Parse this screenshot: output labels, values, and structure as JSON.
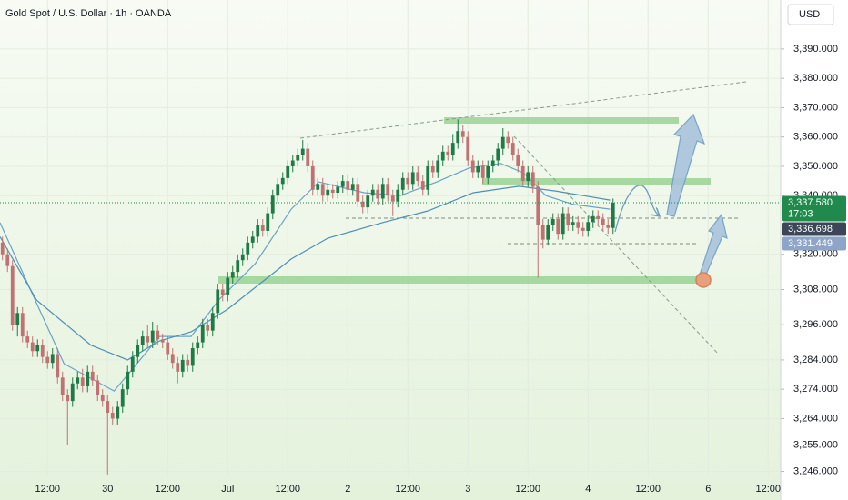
{
  "chart_data": {
    "type": "candlestick",
    "title": "Gold Spot / U.S. Dollar · 1h · OANDA",
    "currency": "USD",
    "up_color": "#1e7b45",
    "down_color": "#c07272",
    "xlim": [
      -21.5,
      134.5
    ],
    "ylim": [
      3244,
      3406.7
    ],
    "xticks": [
      {
        "value": -12,
        "label": "12:00"
      },
      {
        "value": 0,
        "label": "30"
      },
      {
        "value": 12,
        "label": "12:00"
      },
      {
        "value": 24,
        "label": "Jul"
      },
      {
        "value": 36,
        "label": "12:00"
      },
      {
        "value": 48,
        "label": "2"
      },
      {
        "value": 60,
        "label": "12:00"
      },
      {
        "value": 72,
        "label": "3"
      },
      {
        "value": 84,
        "label": "12:00"
      },
      {
        "value": 96,
        "label": "4"
      },
      {
        "value": 108,
        "label": "12:00"
      },
      {
        "value": 120,
        "label": "6"
      },
      {
        "value": 132,
        "label": "12:00"
      }
    ],
    "yticks": [
      {
        "value": 3390,
        "label": "3,390.000"
      },
      {
        "value": 3380,
        "label": "3,380.000"
      },
      {
        "value": 3370,
        "label": "3,370.000"
      },
      {
        "value": 3360,
        "label": "3,360.000"
      },
      {
        "value": 3350,
        "label": "3,350.000"
      },
      {
        "value": 3340,
        "label": "3,340.000"
      },
      {
        "value": 3320,
        "label": "3,320.000"
      },
      {
        "value": 3308,
        "label": "3,308.000"
      },
      {
        "value": 3296,
        "label": "3,296.000"
      },
      {
        "value": 3284,
        "label": "3,284.000"
      },
      {
        "value": 3274,
        "label": "3,274.000"
      },
      {
        "value": 3264,
        "label": "3,264.000"
      },
      {
        "value": 3255,
        "label": "3,255.000"
      },
      {
        "value": 3246,
        "label": "3,246.000"
      }
    ],
    "price_labels": [
      {
        "value": 3337.58,
        "label": "3,337.580",
        "countdown": "17:03",
        "color": "#1f8a4c"
      },
      {
        "value": 3336.698,
        "label": "3,336.698",
        "color": "#3b4656"
      },
      {
        "value": 3331.449,
        "label": "3,331.449",
        "color": "#8ea4c8"
      }
    ],
    "x": [
      -21,
      -20,
      -19,
      -18,
      -17,
      -16,
      -15,
      -14,
      -13,
      -12,
      -11,
      -10,
      -9,
      -8,
      -7,
      -6,
      -5,
      -4,
      -3,
      -2,
      -1,
      0,
      1,
      2,
      3,
      4,
      5,
      6,
      7,
      8,
      9,
      10,
      11,
      12,
      13,
      14,
      15,
      16,
      17,
      18,
      19,
      20,
      21,
      22,
      23,
      24,
      25,
      26,
      27,
      28,
      29,
      30,
      31,
      32,
      33,
      34,
      35,
      36,
      37,
      38,
      39,
      40,
      41,
      42,
      43,
      44,
      45,
      46,
      47,
      48,
      49,
      50,
      51,
      52,
      53,
      54,
      55,
      56,
      57,
      58,
      59,
      60,
      61,
      62,
      63,
      64,
      65,
      66,
      67,
      68,
      69,
      70,
      71,
      72,
      73,
      74,
      75,
      76,
      77,
      78,
      79,
      80,
      81,
      82,
      83,
      84,
      85,
      86,
      87,
      88,
      89,
      90,
      91,
      92,
      93,
      94,
      95,
      96,
      97,
      98,
      99,
      100,
      101
    ],
    "open": [
      3324,
      3320,
      3316,
      3296,
      3300,
      3292,
      3290,
      3287,
      3289,
      3285,
      3283,
      3286,
      3278,
      3272,
      3270,
      3276,
      3278,
      3275,
      3280,
      3277,
      3272,
      3270,
      3266,
      3264,
      3268,
      3274,
      3280,
      3285,
      3289,
      3292,
      3290,
      3294,
      3291,
      3290,
      3286,
      3283,
      3280,
      3284,
      3282,
      3288,
      3290,
      3296,
      3294,
      3300,
      3308,
      3306,
      3312,
      3314,
      3318,
      3320,
      3324,
      3326,
      3330,
      3328,
      3334,
      3340,
      3344,
      3346,
      3350,
      3352,
      3354,
      3356,
      3350,
      3342,
      3344,
      3340,
      3342,
      3341,
      3343,
      3345,
      3342,
      3344,
      3338,
      3336,
      3340,
      3342,
      3339,
      3344,
      3340,
      3338,
      3342,
      3346,
      3344,
      3348,
      3345,
      3342,
      3350,
      3348,
      3352,
      3355,
      3354,
      3358,
      3362,
      3360,
      3352,
      3348,
      3350,
      3346,
      3350,
      3352,
      3356,
      3360,
      3358,
      3354,
      3350,
      3345,
      3348,
      3343,
      3330,
      3325,
      3330,
      3332,
      3327,
      3334,
      3330,
      3331,
      3329,
      3328,
      3331,
      3333,
      3332,
      3330,
      3329
    ],
    "high": [
      3326,
      3322,
      3318,
      3302,
      3302,
      3294,
      3292,
      3291,
      3291,
      3287,
      3288,
      3288,
      3280,
      3274,
      3278,
      3280,
      3281,
      3282,
      3282,
      3279,
      3274,
      3272,
      3268,
      3270,
      3276,
      3282,
      3287,
      3291,
      3294,
      3296,
      3297,
      3296,
      3293,
      3292,
      3288,
      3285,
      3286,
      3286,
      3290,
      3292,
      3298,
      3298,
      3302,
      3310,
      3310,
      3314,
      3316,
      3320,
      3322,
      3326,
      3328,
      3332,
      3332,
      3336,
      3342,
      3346,
      3348,
      3352,
      3354,
      3356,
      3359,
      3358,
      3352,
      3346,
      3346,
      3344,
      3344,
      3345,
      3347,
      3347,
      3346,
      3346,
      3340,
      3342,
      3344,
      3344,
      3346,
      3346,
      3342,
      3344,
      3348,
      3348,
      3350,
      3350,
      3347,
      3352,
      3352,
      3354,
      3357,
      3357,
      3361,
      3366,
      3364,
      3362,
      3354,
      3352,
      3352,
      3352,
      3354,
      3358,
      3363,
      3362,
      3360,
      3356,
      3352,
      3350,
      3350,
      3345,
      3332,
      3332,
      3334,
      3334,
      3336,
      3336,
      3333,
      3333,
      3331,
      3333,
      3335,
      3335,
      3334,
      3332,
      3339
    ],
    "low": [
      3318,
      3314,
      3294,
      3292,
      3290,
      3288,
      3285,
      3285,
      3283,
      3281,
      3281,
      3276,
      3270,
      3255,
      3268,
      3274,
      3273,
      3273,
      3275,
      3270,
      3268,
      3245,
      3262,
      3262,
      3266,
      3272,
      3278,
      3283,
      3287,
      3288,
      3288,
      3289,
      3288,
      3284,
      3281,
      3276,
      3278,
      3280,
      3280,
      3286,
      3288,
      3292,
      3292,
      3298,
      3304,
      3304,
      3310,
      3312,
      3316,
      3318,
      3322,
      3324,
      3326,
      3326,
      3332,
      3338,
      3342,
      3344,
      3348,
      3350,
      3352,
      3348,
      3340,
      3340,
      3338,
      3338,
      3339,
      3339,
      3341,
      3340,
      3340,
      3336,
      3334,
      3334,
      3338,
      3337,
      3337,
      3338,
      3333,
      3336,
      3340,
      3342,
      3342,
      3343,
      3340,
      3340,
      3346,
      3346,
      3350,
      3352,
      3352,
      3356,
      3358,
      3350,
      3346,
      3346,
      3344,
      3344,
      3348,
      3350,
      3354,
      3356,
      3352,
      3348,
      3343,
      3343,
      3341,
      3312,
      3322,
      3323,
      3328,
      3325,
      3325,
      3328,
      3328,
      3327,
      3326,
      3326,
      3329,
      3330,
      3328,
      3327,
      3327
    ],
    "close": [
      3320,
      3316,
      3296,
      3300,
      3292,
      3290,
      3287,
      3289,
      3285,
      3283,
      3286,
      3278,
      3272,
      3270,
      3276,
      3278,
      3275,
      3280,
      3277,
      3272,
      3270,
      3266,
      3264,
      3268,
      3274,
      3280,
      3285,
      3289,
      3292,
      3290,
      3294,
      3291,
      3290,
      3286,
      3283,
      3280,
      3284,
      3282,
      3288,
      3290,
      3296,
      3294,
      3300,
      3308,
      3306,
      3312,
      3314,
      3318,
      3320,
      3324,
      3326,
      3330,
      3328,
      3334,
      3340,
      3344,
      3346,
      3350,
      3352,
      3354,
      3356,
      3350,
      3342,
      3344,
      3340,
      3342,
      3341,
      3343,
      3345,
      3342,
      3344,
      3338,
      3336,
      3340,
      3342,
      3339,
      3344,
      3340,
      3338,
      3342,
      3346,
      3344,
      3348,
      3345,
      3342,
      3350,
      3348,
      3352,
      3355,
      3354,
      3358,
      3362,
      3360,
      3352,
      3348,
      3350,
      3346,
      3350,
      3352,
      3356,
      3360,
      3358,
      3354,
      3350,
      3345,
      3348,
      3343,
      3330,
      3325,
      3330,
      3332,
      3327,
      3334,
      3330,
      3331,
      3329,
      3328,
      3331,
      3333,
      3332,
      3330,
      3329,
      3337.58
    ],
    "overlays": [
      {
        "color": "#6aa3c4",
        "x": [
          -21.5,
          -8.7,
          1.3,
          10.4,
          16.7,
          22.2,
          29.5,
          36.7,
          42.2,
          51.3,
          58.5,
          65.8,
          72.2,
          78.5,
          83.1,
          87.6,
          93.1,
          100.4
        ],
        "values": [
          3330.8,
          3282.7,
          3273.4,
          3292,
          3292,
          3304.4,
          3316.8,
          3335.4,
          3344.7,
          3341,
          3340,
          3344.7,
          3349.4,
          3351,
          3347.8,
          3340,
          3337,
          3335.4
        ]
      },
      {
        "color": "#4f8fb5",
        "x": [
          -21.5,
          -14.2,
          -3.3,
          4,
          10.4,
          16.7,
          24,
          36.7,
          44,
          54.9,
          64,
          73.1,
          82.2,
          89.5,
          100.4
        ],
        "values": [
          3326,
          3304.4,
          3289,
          3284,
          3290.5,
          3293.6,
          3301.3,
          3318.4,
          3325.5,
          3330.8,
          3334.8,
          3341,
          3343.2,
          3341.6,
          3338.5
        ]
      }
    ]
  }
}
